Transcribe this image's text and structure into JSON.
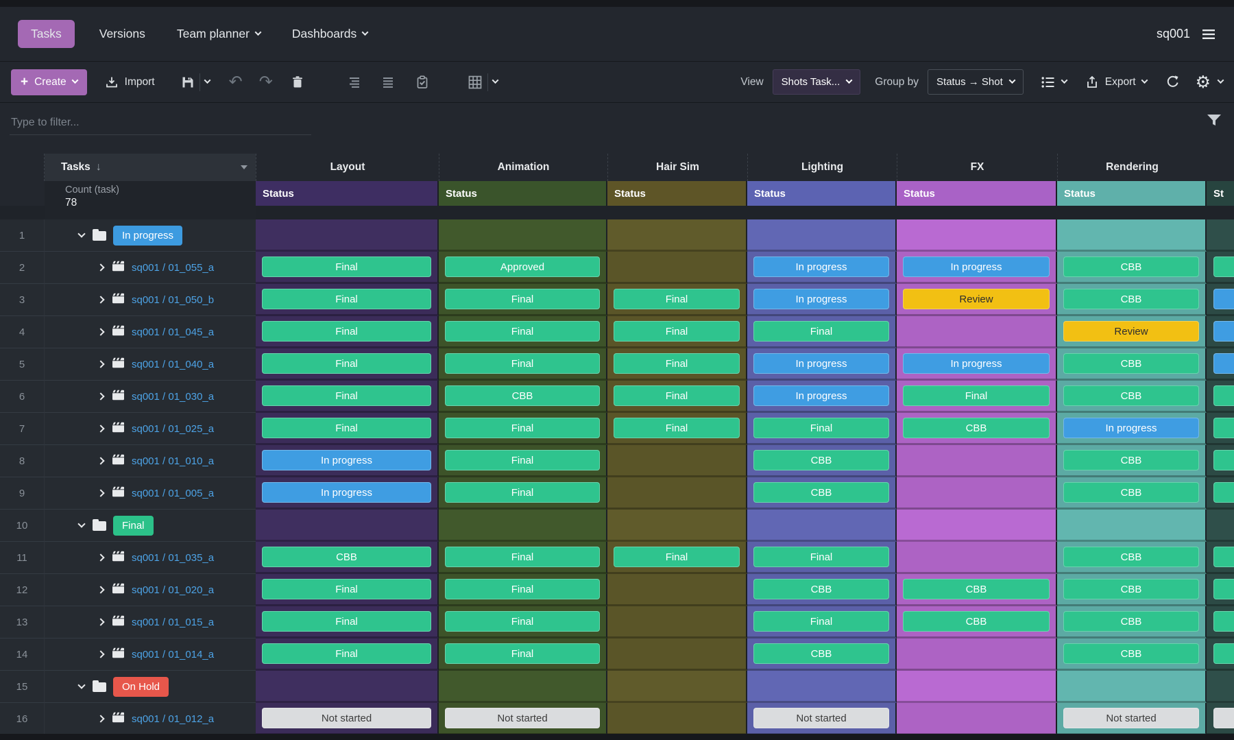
{
  "nav": {
    "tabs": [
      {
        "label": "Tasks",
        "active": true,
        "caret": false
      },
      {
        "label": "Versions",
        "active": false,
        "caret": false
      },
      {
        "label": "Team planner",
        "active": false,
        "caret": true
      },
      {
        "label": "Dashboards",
        "active": false,
        "caret": true
      }
    ],
    "project_code": "sq001"
  },
  "toolbar": {
    "create_label": "Create",
    "import_label": "Import",
    "view_label": "View",
    "view_value": "Shots Task...",
    "group_by_label": "Group by",
    "group_by_value": "Status → Shot",
    "export_label": "Export"
  },
  "filter": {
    "placeholder": "Type to filter..."
  },
  "table": {
    "tasks_header": "Tasks",
    "count_label": "Count (task)",
    "count_value": "78",
    "status_header_label": "Status",
    "columns": [
      {
        "name": "Layout",
        "status_label": "Status",
        "header_bg": "#3e2e62",
        "cell_bg": "#3b2c59"
      },
      {
        "name": "Animation",
        "status_label": "Status",
        "header_bg": "#3a542b",
        "cell_bg": "#3d5329"
      },
      {
        "name": "Hair Sim",
        "status_label": "Status",
        "header_bg": "#5e5527",
        "cell_bg": "#5a5528"
      },
      {
        "name": "Lighting",
        "status_label": "Status",
        "header_bg": "#5c63b2",
        "cell_bg": "#5b60a8"
      },
      {
        "name": "FX",
        "status_label": "Status",
        "header_bg": "#a962c6",
        "cell_bg": "#ad63c4"
      },
      {
        "name": "Rendering",
        "status_label": "Status",
        "header_bg": "#5fb0aa",
        "cell_bg": "#5caaa4"
      }
    ],
    "partial_column": {
      "status_label": "St",
      "header_bg": "#27443f",
      "cell_bg": "#2c4a45"
    },
    "statuses": {
      "final": {
        "label": "Final",
        "bg": "#2fc48e",
        "fg": "#ffffff"
      },
      "approved": {
        "label": "Approved",
        "bg": "#2fc48e",
        "fg": "#ffffff"
      },
      "cbb": {
        "label": "CBB",
        "bg": "#2fc48e",
        "fg": "#ffffff"
      },
      "in_progress": {
        "label": "In progress",
        "bg": "#3f9de2",
        "fg": "#ffffff"
      },
      "review": {
        "label": "Review",
        "bg": "#f2c013",
        "fg": "#2e2e2e"
      },
      "not_started": {
        "label": "Not started",
        "bg": "#dadcde",
        "fg": "#3c3c3c"
      }
    },
    "group_badges": {
      "in_progress": "#3d9be0",
      "final": "#2cc189",
      "on_hold": "#e7574b"
    },
    "partial_pill_colors": {
      "green": "#2fc48e",
      "blue": "#3f9de2",
      "gray": "#dadcde"
    },
    "rows": [
      {
        "num": "1",
        "type": "group",
        "label": "In progress",
        "badge": "in_progress",
        "cells": [
          null,
          null,
          null,
          null,
          null,
          null
        ],
        "partial": null
      },
      {
        "num": "2",
        "type": "shot",
        "label": "sq001 / 01_055_a",
        "cells": [
          "final",
          "approved",
          null,
          "in_progress",
          "in_progress",
          "cbb"
        ],
        "partial": "green"
      },
      {
        "num": "3",
        "type": "shot",
        "label": "sq001 / 01_050_b",
        "cells": [
          "final",
          "final",
          "final",
          "in_progress",
          "review",
          "cbb"
        ],
        "partial": "blue"
      },
      {
        "num": "4",
        "type": "shot",
        "label": "sq001 / 01_045_a",
        "cells": [
          "final",
          "final",
          "final",
          "final",
          null,
          "review"
        ],
        "partial": "blue"
      },
      {
        "num": "5",
        "type": "shot",
        "label": "sq001 / 01_040_a",
        "cells": [
          "final",
          "final",
          "final",
          "in_progress",
          "in_progress",
          "cbb"
        ],
        "partial": "blue"
      },
      {
        "num": "6",
        "type": "shot",
        "label": "sq001 / 01_030_a",
        "cells": [
          "final",
          "cbb",
          "final",
          "in_progress",
          "final",
          "cbb"
        ],
        "partial": "green"
      },
      {
        "num": "7",
        "type": "shot",
        "label": "sq001 / 01_025_a",
        "cells": [
          "final",
          "final",
          "final",
          "final",
          "cbb",
          "in_progress"
        ],
        "partial": "green"
      },
      {
        "num": "8",
        "type": "shot",
        "label": "sq001 / 01_010_a",
        "cells": [
          "in_progress",
          "final",
          null,
          "cbb",
          null,
          "cbb"
        ],
        "partial": "green"
      },
      {
        "num": "9",
        "type": "shot",
        "label": "sq001 / 01_005_a",
        "cells": [
          "in_progress",
          "final",
          null,
          "cbb",
          null,
          "cbb"
        ],
        "partial": "green"
      },
      {
        "num": "10",
        "type": "group",
        "label": "Final",
        "badge": "final",
        "cells": [
          null,
          null,
          null,
          null,
          null,
          null
        ],
        "partial": null
      },
      {
        "num": "11",
        "type": "shot",
        "label": "sq001 / 01_035_a",
        "cells": [
          "cbb",
          "final",
          "final",
          "final",
          null,
          "cbb"
        ],
        "partial": "green"
      },
      {
        "num": "12",
        "type": "shot",
        "label": "sq001 / 01_020_a",
        "cells": [
          "final",
          "final",
          null,
          "cbb",
          "cbb",
          "cbb"
        ],
        "partial": "green"
      },
      {
        "num": "13",
        "type": "shot",
        "label": "sq001 / 01_015_a",
        "cells": [
          "final",
          "final",
          null,
          "final",
          "cbb",
          "cbb"
        ],
        "partial": "green"
      },
      {
        "num": "14",
        "type": "shot",
        "label": "sq001 / 01_014_a",
        "cells": [
          "final",
          "final",
          null,
          "cbb",
          null,
          "cbb"
        ],
        "partial": "green"
      },
      {
        "num": "15",
        "type": "group",
        "label": "On Hold",
        "badge": "on_hold",
        "cells": [
          null,
          null,
          null,
          null,
          null,
          null
        ],
        "partial": null
      },
      {
        "num": "16",
        "type": "shot",
        "label": "sq001 / 01_012_a",
        "cells": [
          "not_started",
          "not_started",
          null,
          "not_started",
          null,
          "not_started"
        ],
        "partial": "gray"
      }
    ]
  },
  "icons": {
    "plus": "+",
    "sort_desc": "↓",
    "undo": "↶",
    "redo": "↷",
    "gear": "⚙"
  }
}
